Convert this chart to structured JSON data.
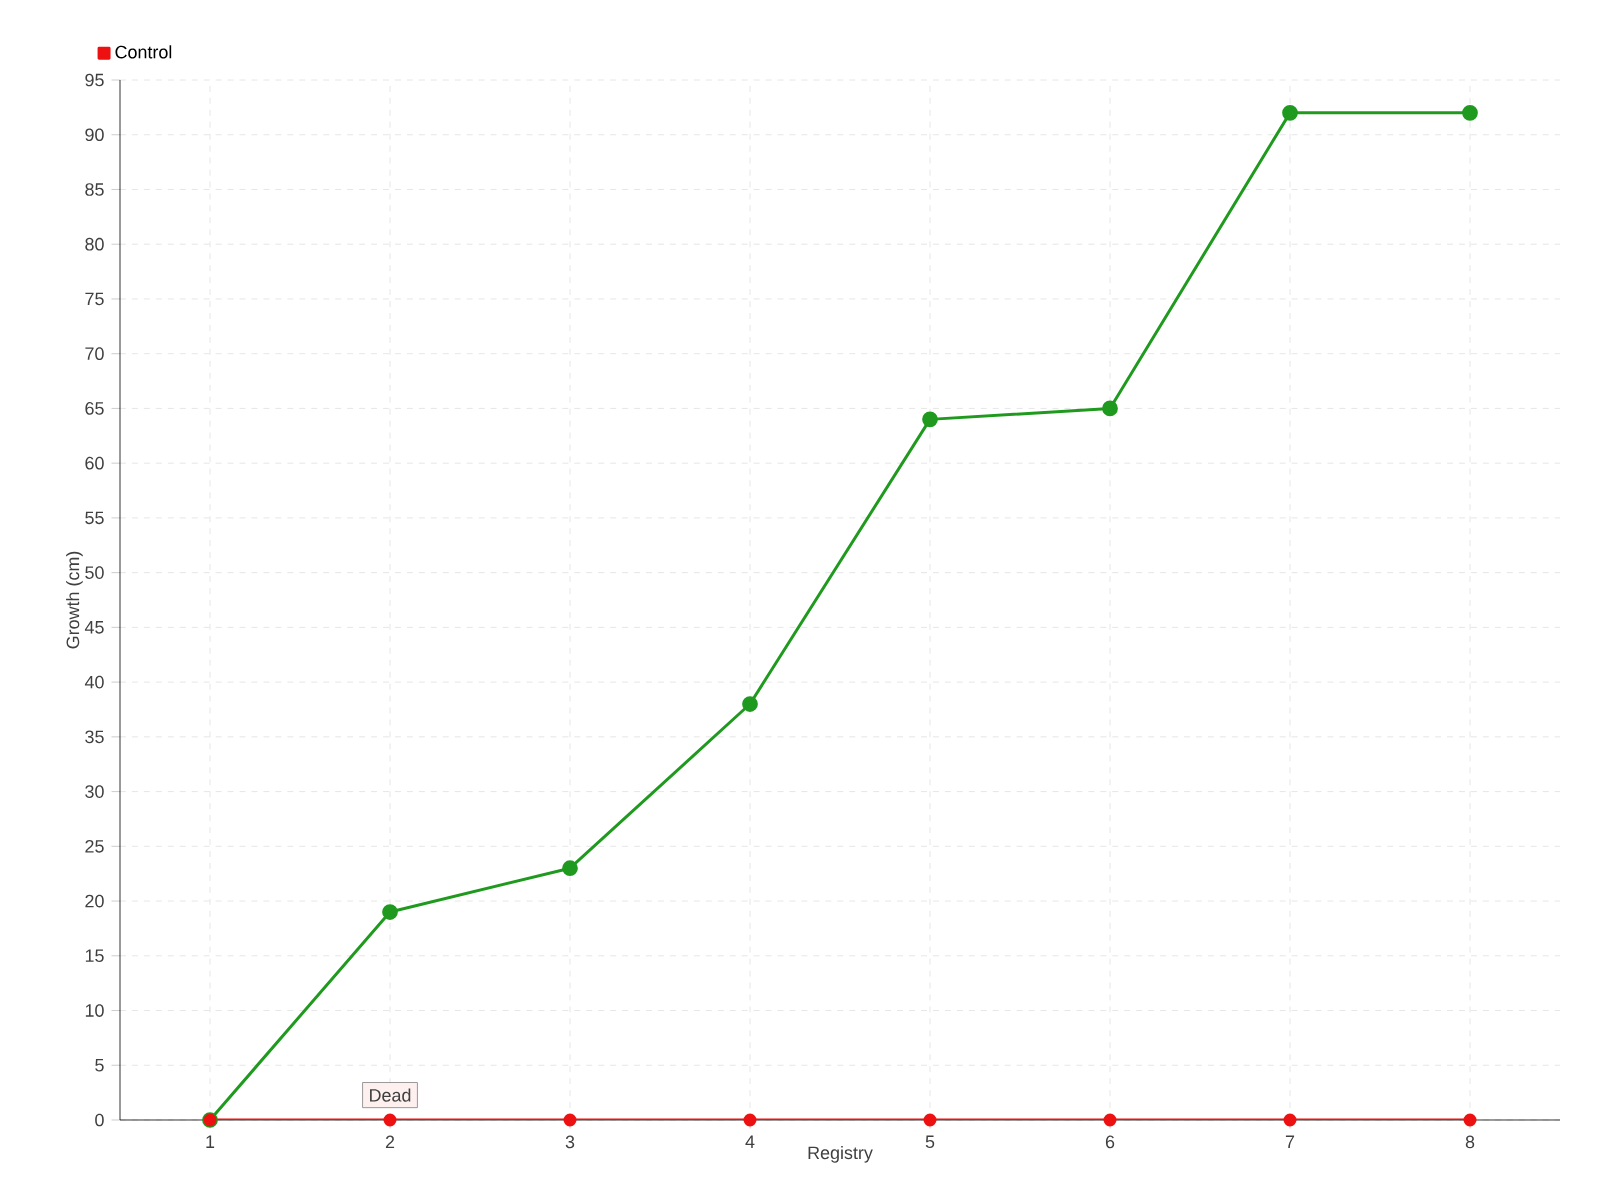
{
  "chart_data": {
    "type": "line",
    "categories": [
      "1",
      "2",
      "3",
      "4",
      "5",
      "6",
      "7",
      "8"
    ],
    "series": [
      {
        "color": "#1f9a1f",
        "values": [
          0,
          19,
          23,
          38,
          64,
          65,
          92,
          92
        ]
      },
      {
        "name": "Control",
        "color": "#ee1111",
        "values": [
          0,
          0,
          0,
          0,
          0,
          0,
          0,
          0
        ]
      }
    ],
    "xlabel": "Registry",
    "ylabel": "Growth (cm)",
    "ylim": [
      0,
      95
    ],
    "yticks": [
      0,
      5,
      10,
      15,
      20,
      25,
      30,
      35,
      40,
      45,
      50,
      55,
      60,
      65,
      70,
      75,
      80,
      85,
      90,
      95
    ],
    "grid": true,
    "legend": "top left",
    "marker": "circle",
    "line_style": "solid",
    "annotations": [
      {
        "text": "Dead",
        "x": "2",
        "y": 0
      }
    ]
  }
}
